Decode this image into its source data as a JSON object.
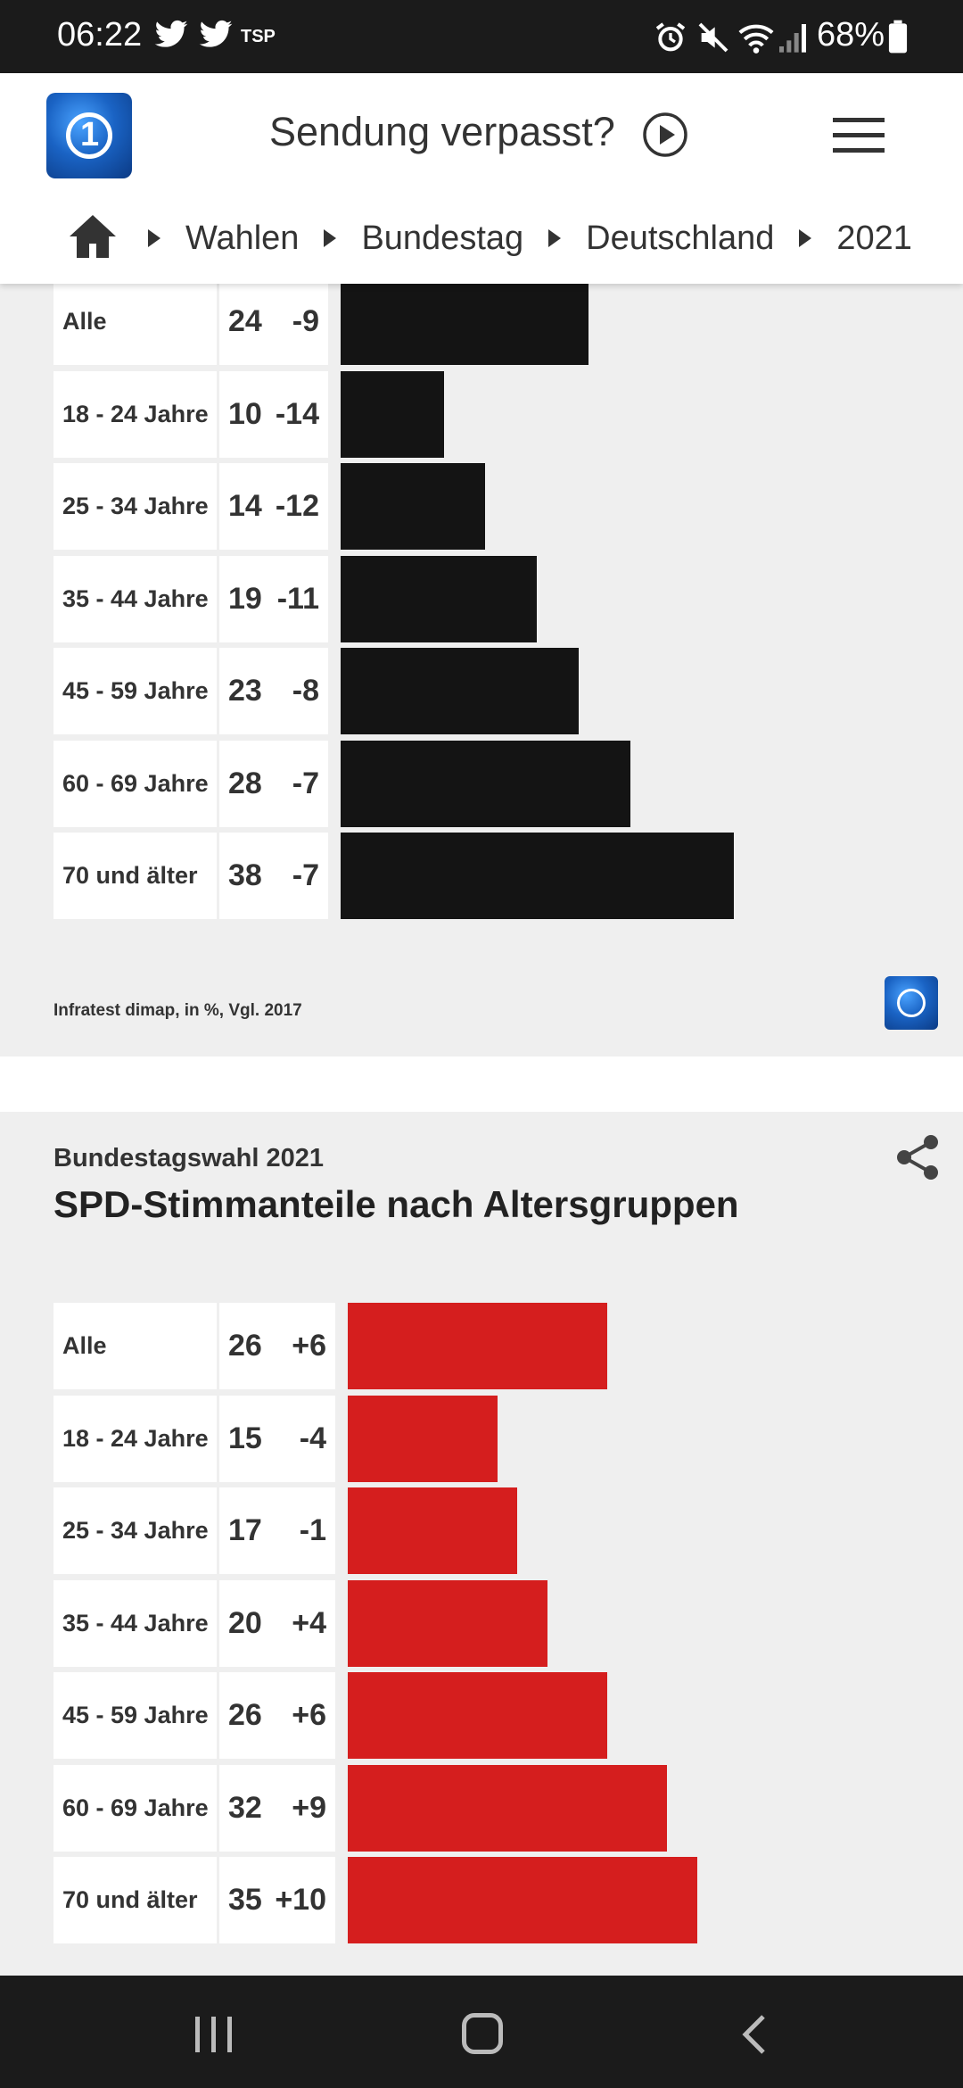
{
  "status_bar": {
    "time": "06:22",
    "extra": "TSP",
    "battery": "68%"
  },
  "header": {
    "missed_label": "Sendung verpasst?",
    "breadcrumbs": [
      "Wahlen",
      "Bundestag",
      "Deutschland",
      "2021"
    ]
  },
  "colors": {
    "bar_black": "#141414",
    "bar_red": "#d51e1e"
  },
  "chart_top": {
    "source": "Infratest dimap, in %, Vgl. 2017",
    "rows": [
      {
        "cat": "Alle",
        "val": "24",
        "diff": "-9"
      },
      {
        "cat": "18 - 24 Jahre",
        "val": "10",
        "diff": "-14"
      },
      {
        "cat": "25 - 34 Jahre",
        "val": "14",
        "diff": "-12"
      },
      {
        "cat": "35 - 44 Jahre",
        "val": "19",
        "diff": "-11"
      },
      {
        "cat": "45 - 59 Jahre",
        "val": "23",
        "diff": "-8"
      },
      {
        "cat": "60 - 69 Jahre",
        "val": "28",
        "diff": "-7"
      },
      {
        "cat": "70 und älter",
        "val": "38",
        "diff": "-7"
      }
    ]
  },
  "chart_bottom": {
    "subtitle": "Bundestagswahl 2021",
    "title": "SPD-Stimmanteile nach Altersgruppen",
    "rows": [
      {
        "cat": "Alle",
        "val": "26",
        "diff": "+6"
      },
      {
        "cat": "18 - 24 Jahre",
        "val": "15",
        "diff": "-4"
      },
      {
        "cat": "25 - 34 Jahre",
        "val": "17",
        "diff": "-1"
      },
      {
        "cat": "35 - 44 Jahre",
        "val": "20",
        "diff": "+4"
      },
      {
        "cat": "45 - 59 Jahre",
        "val": "26",
        "diff": "+6"
      },
      {
        "cat": "60 - 69 Jahre",
        "val": "32",
        "diff": "+9"
      },
      {
        "cat": "70 und älter",
        "val": "35",
        "diff": "+10"
      }
    ]
  },
  "chart_data": [
    {
      "type": "bar",
      "categories": [
        "Alle",
        "18 - 24 Jahre",
        "25 - 34 Jahre",
        "35 - 44 Jahre",
        "45 - 59 Jahre",
        "60 - 69 Jahre",
        "70 und älter"
      ],
      "values": [
        24,
        10,
        14,
        19,
        23,
        28,
        38
      ],
      "changes": [
        -9,
        -14,
        -12,
        -11,
        -8,
        -7,
        -7
      ]
    },
    {
      "type": "bar",
      "title": "SPD-Stimmanteile nach Altersgruppen",
      "subtitle": "Bundestagswahl 2021",
      "categories": [
        "Alle",
        "18 - 24 Jahre",
        "25 - 34 Jahre",
        "35 - 44 Jahre",
        "45 - 59 Jahre",
        "60 - 69 Jahre",
        "70 und älter"
      ],
      "values": [
        26,
        15,
        17,
        20,
        26,
        32,
        35
      ],
      "changes": [
        6,
        -4,
        -1,
        4,
        6,
        9,
        10
      ]
    }
  ]
}
